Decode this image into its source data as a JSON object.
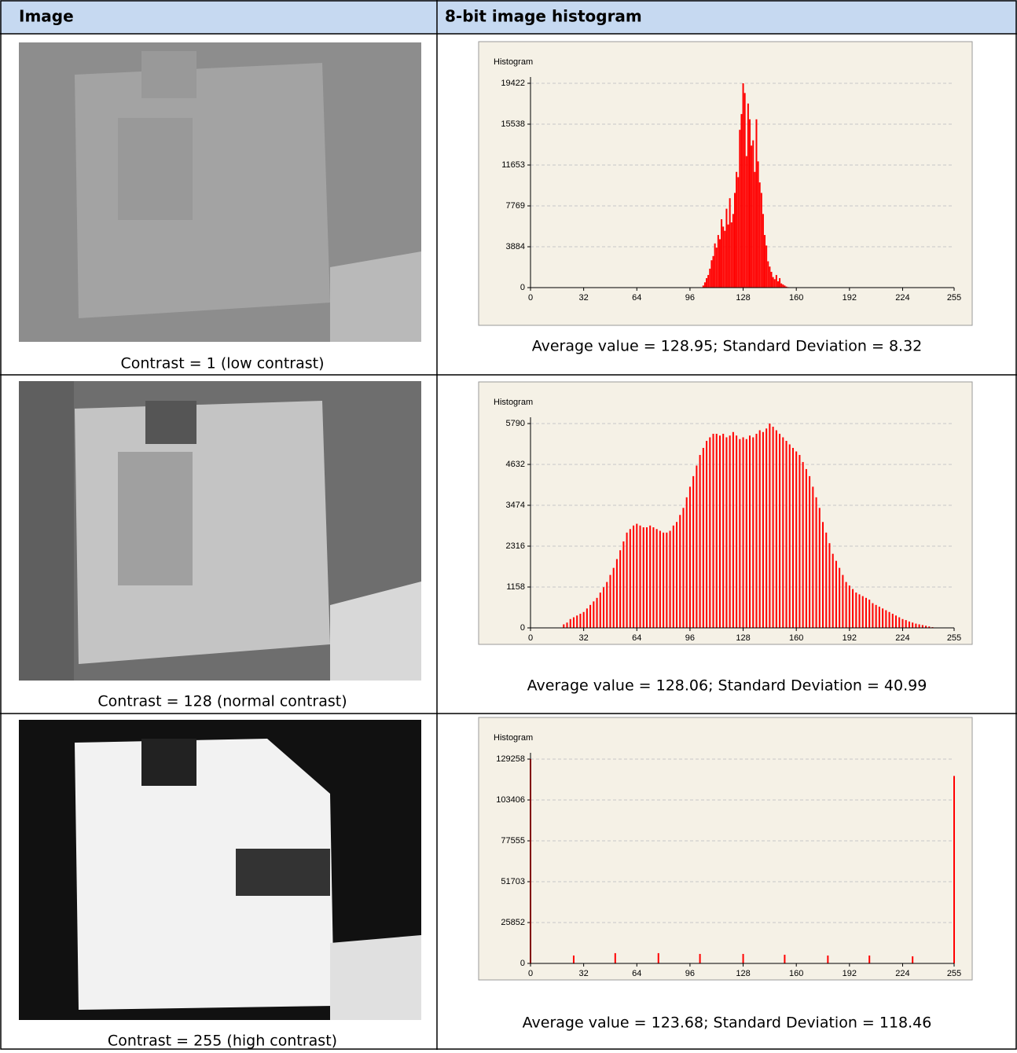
{
  "table": {
    "header": [
      "Image",
      "8-bit image histogram"
    ],
    "rows": [
      {
        "caption": "Contrast = 1 (low contrast)",
        "stats": "Average value = 128.95; Standard Deviation = 8.32",
        "histogram": {
          "type": "bar",
          "title": "Histogram",
          "color": "#ff0000",
          "grid": true,
          "xlim": [
            0,
            255
          ],
          "xticks": [
            0,
            32,
            64,
            96,
            128,
            160,
            192,
            224,
            255
          ],
          "ylim": [
            0,
            20020
          ],
          "yticks": [
            0,
            3884,
            7769,
            11653,
            15538,
            19422
          ],
          "x": [
            104,
            105,
            106,
            107,
            108,
            109,
            110,
            111,
            112,
            113,
            114,
            115,
            116,
            117,
            118,
            119,
            120,
            121,
            122,
            123,
            124,
            125,
            126,
            127,
            128,
            129,
            130,
            131,
            132,
            133,
            134,
            135,
            136,
            137,
            138,
            139,
            140,
            141,
            142,
            143,
            144,
            145,
            146,
            147,
            148,
            149,
            150,
            151,
            152,
            153,
            154,
            155
          ],
          "values": [
            200,
            500,
            900,
            1200,
            1800,
            2600,
            3000,
            4200,
            3800,
            5000,
            4600,
            6500,
            5800,
            5400,
            7500,
            6000,
            8500,
            6200,
            7000,
            9000,
            11000,
            10500,
            15000,
            16500,
            19422,
            18500,
            12500,
            17500,
            16000,
            13500,
            14000,
            11000,
            16000,
            12000,
            10000,
            9000,
            7000,
            5000,
            4000,
            2500,
            2000,
            1500,
            1000,
            800,
            1200,
            600,
            900,
            400,
            300,
            200,
            100,
            50
          ]
        }
      },
      {
        "caption": "Contrast = 128 (normal contrast)",
        "stats": "Average value = 128.06; Standard Deviation = 40.99",
        "histogram": {
          "type": "bar",
          "title": "Histogram",
          "color": "#ff0000",
          "grid": true,
          "xlim": [
            0,
            255
          ],
          "xticks": [
            0,
            32,
            64,
            96,
            128,
            160,
            192,
            224,
            255
          ],
          "ylim": [
            0,
            5968
          ],
          "yticks": [
            0,
            1158,
            2316,
            3474,
            4632,
            5790
          ],
          "x": [
            20,
            22,
            24,
            26,
            28,
            30,
            32,
            34,
            36,
            38,
            40,
            42,
            44,
            46,
            48,
            50,
            52,
            54,
            56,
            58,
            60,
            62,
            64,
            66,
            68,
            70,
            72,
            74,
            76,
            78,
            80,
            82,
            84,
            86,
            88,
            90,
            92,
            94,
            96,
            98,
            100,
            102,
            104,
            106,
            108,
            110,
            112,
            114,
            116,
            118,
            120,
            122,
            124,
            126,
            128,
            130,
            132,
            134,
            136,
            138,
            140,
            142,
            144,
            146,
            148,
            150,
            152,
            154,
            156,
            158,
            160,
            162,
            164,
            166,
            168,
            170,
            172,
            174,
            176,
            178,
            180,
            182,
            184,
            186,
            188,
            190,
            192,
            194,
            196,
            198,
            200,
            202,
            204,
            206,
            208,
            210,
            212,
            214,
            216,
            218,
            220,
            222,
            224,
            226,
            228,
            230,
            232,
            234,
            236,
            238,
            240,
            242
          ],
          "values": [
            100,
            150,
            250,
            300,
            350,
            400,
            450,
            550,
            650,
            750,
            850,
            1000,
            1150,
            1300,
            1500,
            1700,
            1950,
            2200,
            2450,
            2700,
            2800,
            2900,
            2950,
            2900,
            2850,
            2850,
            2900,
            2850,
            2800,
            2750,
            2700,
            2700,
            2750,
            2900,
            3000,
            3200,
            3400,
            3700,
            4000,
            4300,
            4600,
            4900,
            5100,
            5300,
            5400,
            5500,
            5500,
            5450,
            5500,
            5400,
            5450,
            5550,
            5450,
            5350,
            5400,
            5350,
            5450,
            5400,
            5500,
            5600,
            5550,
            5650,
            5790,
            5700,
            5600,
            5500,
            5400,
            5300,
            5200,
            5100,
            5000,
            4900,
            4700,
            4500,
            4300,
            4000,
            3700,
            3400,
            3000,
            2700,
            2400,
            2100,
            1900,
            1700,
            1500,
            1300,
            1200,
            1100,
            1000,
            950,
            900,
            850,
            800,
            700,
            650,
            600,
            550,
            500,
            450,
            400,
            350,
            300,
            250,
            220,
            180,
            150,
            120,
            100,
            80,
            60,
            40,
            20
          ]
        }
      },
      {
        "caption": "Contrast = 255 (high contrast)",
        "stats": "Average value = 123.68; Standard Deviation = 118.46",
        "histogram": {
          "type": "bar",
          "title": "Histogram",
          "color": "#ff0000",
          "grid": true,
          "xlim": [
            0,
            255
          ],
          "xticks": [
            0,
            32,
            64,
            96,
            128,
            160,
            192,
            224,
            255
          ],
          "ylim": [
            0,
            133234
          ],
          "yticks": [
            0,
            25852,
            51703,
            77555,
            103406,
            129258
          ],
          "x": [
            0,
            26,
            51,
            77,
            102,
            128,
            153,
            179,
            204,
            230,
            255
          ],
          "values": [
            129258,
            5000,
            6500,
            6500,
            6000,
            6000,
            5500,
            5000,
            5000,
            4500,
            118600
          ]
        }
      }
    ]
  }
}
